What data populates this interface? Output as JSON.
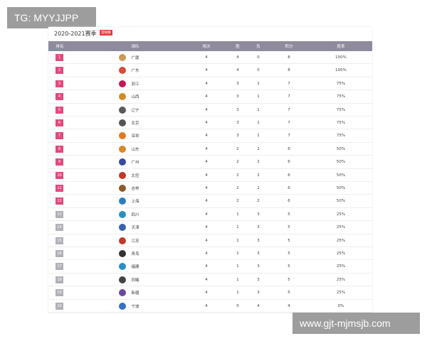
{
  "watermark_top": "TG: MYYJJPP",
  "watermark_bottom": "www.gjt-mjmsjb.com",
  "header": {
    "title": "2020-2021赛季",
    "badge": "常规赛"
  },
  "table": {
    "columns": [
      "排名",
      "球队",
      "场次",
      "胜",
      "负",
      "积分",
      "胜率"
    ],
    "rows": [
      [
        "1",
        "广厦",
        "4",
        "4",
        "0",
        "8",
        "100%"
      ],
      [
        "2",
        "广东",
        "4",
        "4",
        "0",
        "8",
        "100%"
      ],
      [
        "3",
        "浙江",
        "4",
        "3",
        "1",
        "7",
        "75%"
      ],
      [
        "4",
        "山西",
        "4",
        "3",
        "1",
        "7",
        "75%"
      ],
      [
        "5",
        "辽宁",
        "4",
        "3",
        "1",
        "7",
        "75%"
      ],
      [
        "6",
        "北京",
        "4",
        "3",
        "1",
        "7",
        "75%"
      ],
      [
        "7",
        "深圳",
        "4",
        "3",
        "1",
        "7",
        "75%"
      ],
      [
        "8",
        "山东",
        "4",
        "2",
        "2",
        "6",
        "50%"
      ],
      [
        "9",
        "广州",
        "4",
        "2",
        "2",
        "6",
        "50%"
      ],
      [
        "10",
        "北控",
        "4",
        "2",
        "2",
        "6",
        "50%"
      ],
      [
        "11",
        "吉林",
        "4",
        "2",
        "2",
        "6",
        "50%"
      ],
      [
        "12",
        "上海",
        "4",
        "2",
        "2",
        "6",
        "50%"
      ],
      [
        "13",
        "四川",
        "4",
        "1",
        "3",
        "5",
        "25%"
      ],
      [
        "14",
        "天津",
        "4",
        "1",
        "3",
        "5",
        "25%"
      ],
      [
        "15",
        "江苏",
        "4",
        "1",
        "3",
        "5",
        "25%"
      ],
      [
        "16",
        "青岛",
        "4",
        "1",
        "3",
        "5",
        "25%"
      ],
      [
        "17",
        "福建",
        "4",
        "1",
        "3",
        "5",
        "25%"
      ],
      [
        "18",
        "同曦",
        "4",
        "1",
        "3",
        "5",
        "25%"
      ],
      [
        "19",
        "新疆",
        "4",
        "1",
        "3",
        "5",
        "25%"
      ],
      [
        "20",
        "宁波",
        "4",
        "0",
        "4",
        "4",
        "0%"
      ]
    ]
  }
}
